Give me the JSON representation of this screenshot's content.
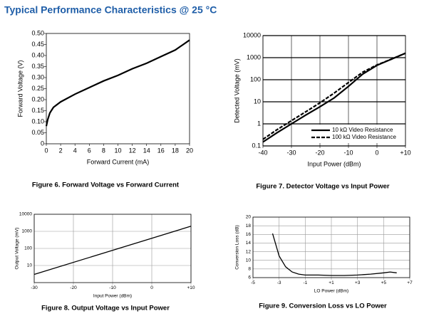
{
  "header": {
    "title": "Typical Performance Characteristics @ 25 °C"
  },
  "chart_data": [
    {
      "type": "line",
      "caption": "Figure 6. Forward Voltage vs Forward Current",
      "x_label": "Forward Current (mA)",
      "y_label": "Forward Voltage (V)",
      "x": [
        0,
        0.2,
        0.5,
        1,
        2,
        4,
        6,
        8,
        10,
        12,
        14,
        16,
        18,
        20
      ],
      "series": [
        {
          "color": "#000000",
          "values": [
            0.08,
            0.11,
            0.14,
            0.165,
            0.19,
            0.225,
            0.255,
            0.285,
            0.31,
            0.34,
            0.365,
            0.395,
            0.425,
            0.47
          ]
        }
      ],
      "xlim": [
        0,
        20
      ],
      "xticks": [
        0,
        2,
        4,
        6,
        8,
        10,
        12,
        14,
        16,
        18,
        20
      ],
      "ylim": [
        0,
        0.5
      ],
      "yticks": [
        0,
        0.05,
        {
          "value": 0.1,
          "label": "0.10"
        },
        0.15,
        {
          "value": 0.2,
          "label": "0.20"
        },
        0.25,
        {
          "value": 0.3,
          "label": "0.30"
        },
        0.35,
        {
          "value": 0.4,
          "label": "0.40"
        },
        0.45,
        {
          "value": 0.5,
          "label": "0.50"
        }
      ],
      "grid": false,
      "y_scale": "linear"
    },
    {
      "type": "line",
      "caption": "Figure 7. Detector Voltage vs Input Power",
      "x_label": "Input Power (dBm)",
      "y_label": "Detected Voltage (mV)",
      "x": [
        -40,
        -35,
        -30,
        -25,
        -20,
        -15,
        -10,
        -5,
        0,
        5,
        10
      ],
      "series": [
        {
          "name": "10 kΩ Video Resistance",
          "color": "#000000",
          "dash": false,
          "values": [
            0.15,
            0.4,
            1,
            2.5,
            6,
            15,
            50,
            180,
            450,
            850,
            1600
          ]
        },
        {
          "name": "100 kΩ Video Resistance",
          "color": "#000000",
          "dash": true,
          "values": [
            0.2,
            0.55,
            1.4,
            3.5,
            9,
            25,
            75,
            220,
            470,
            850,
            1600
          ]
        }
      ],
      "xlim": [
        -40,
        10
      ],
      "xticks": [
        -40,
        -30,
        -20,
        -10,
        0,
        {
          "value": 10,
          "label": "+10"
        }
      ],
      "ylim": [
        0.1,
        10000
      ],
      "yticks": [
        0.1,
        1,
        10,
        100,
        1000,
        10000
      ],
      "grid": true,
      "y_scale": "log",
      "legend": "lower right"
    },
    {
      "type": "line",
      "caption": "Figure 8. Output Voltage vs Input Power",
      "x_label": "Input Power (dBm)",
      "y_label": "Output Voltage (mV)",
      "x": [
        -30,
        10
      ],
      "series": [
        {
          "color": "#000000",
          "values": [
            3,
            2000
          ]
        }
      ],
      "xlim": [
        -30,
        10
      ],
      "xticks": [
        -30,
        -20,
        -10,
        0,
        {
          "value": 10,
          "label": "+10"
        }
      ],
      "ylim": [
        1,
        10000
      ],
      "yticks": [
        10,
        100,
        1000,
        10000
      ],
      "grid": true,
      "y_scale": "log"
    },
    {
      "type": "line",
      "caption": "Figure 9. Conversion Loss vs LO Power",
      "x_label": "LO Power (dBm)",
      "y_label": "Conversion Loss (dB)",
      "x": [
        -3.5,
        -3,
        -2.5,
        -2,
        -1.5,
        -1,
        0,
        1,
        2,
        3,
        4,
        5,
        5.5,
        6
      ],
      "series": [
        {
          "color": "#000000",
          "values": [
            16.2,
            11,
            8.5,
            7.3,
            6.8,
            6.6,
            6.6,
            6.5,
            6.5,
            6.6,
            6.8,
            7.1,
            7.3,
            7.1
          ]
        }
      ],
      "xlim": [
        -5,
        7
      ],
      "xticks": [
        -5,
        -3,
        -1,
        {
          "value": 1,
          "label": "+1"
        },
        {
          "value": 3,
          "label": "+3"
        },
        {
          "value": 5,
          "label": "+5"
        },
        {
          "value": 7,
          "label": "+7"
        }
      ],
      "ylim": [
        6,
        20
      ],
      "yticks": [
        6,
        8,
        10,
        12,
        14,
        16,
        18,
        20
      ],
      "grid": true,
      "y_scale": "linear"
    }
  ]
}
